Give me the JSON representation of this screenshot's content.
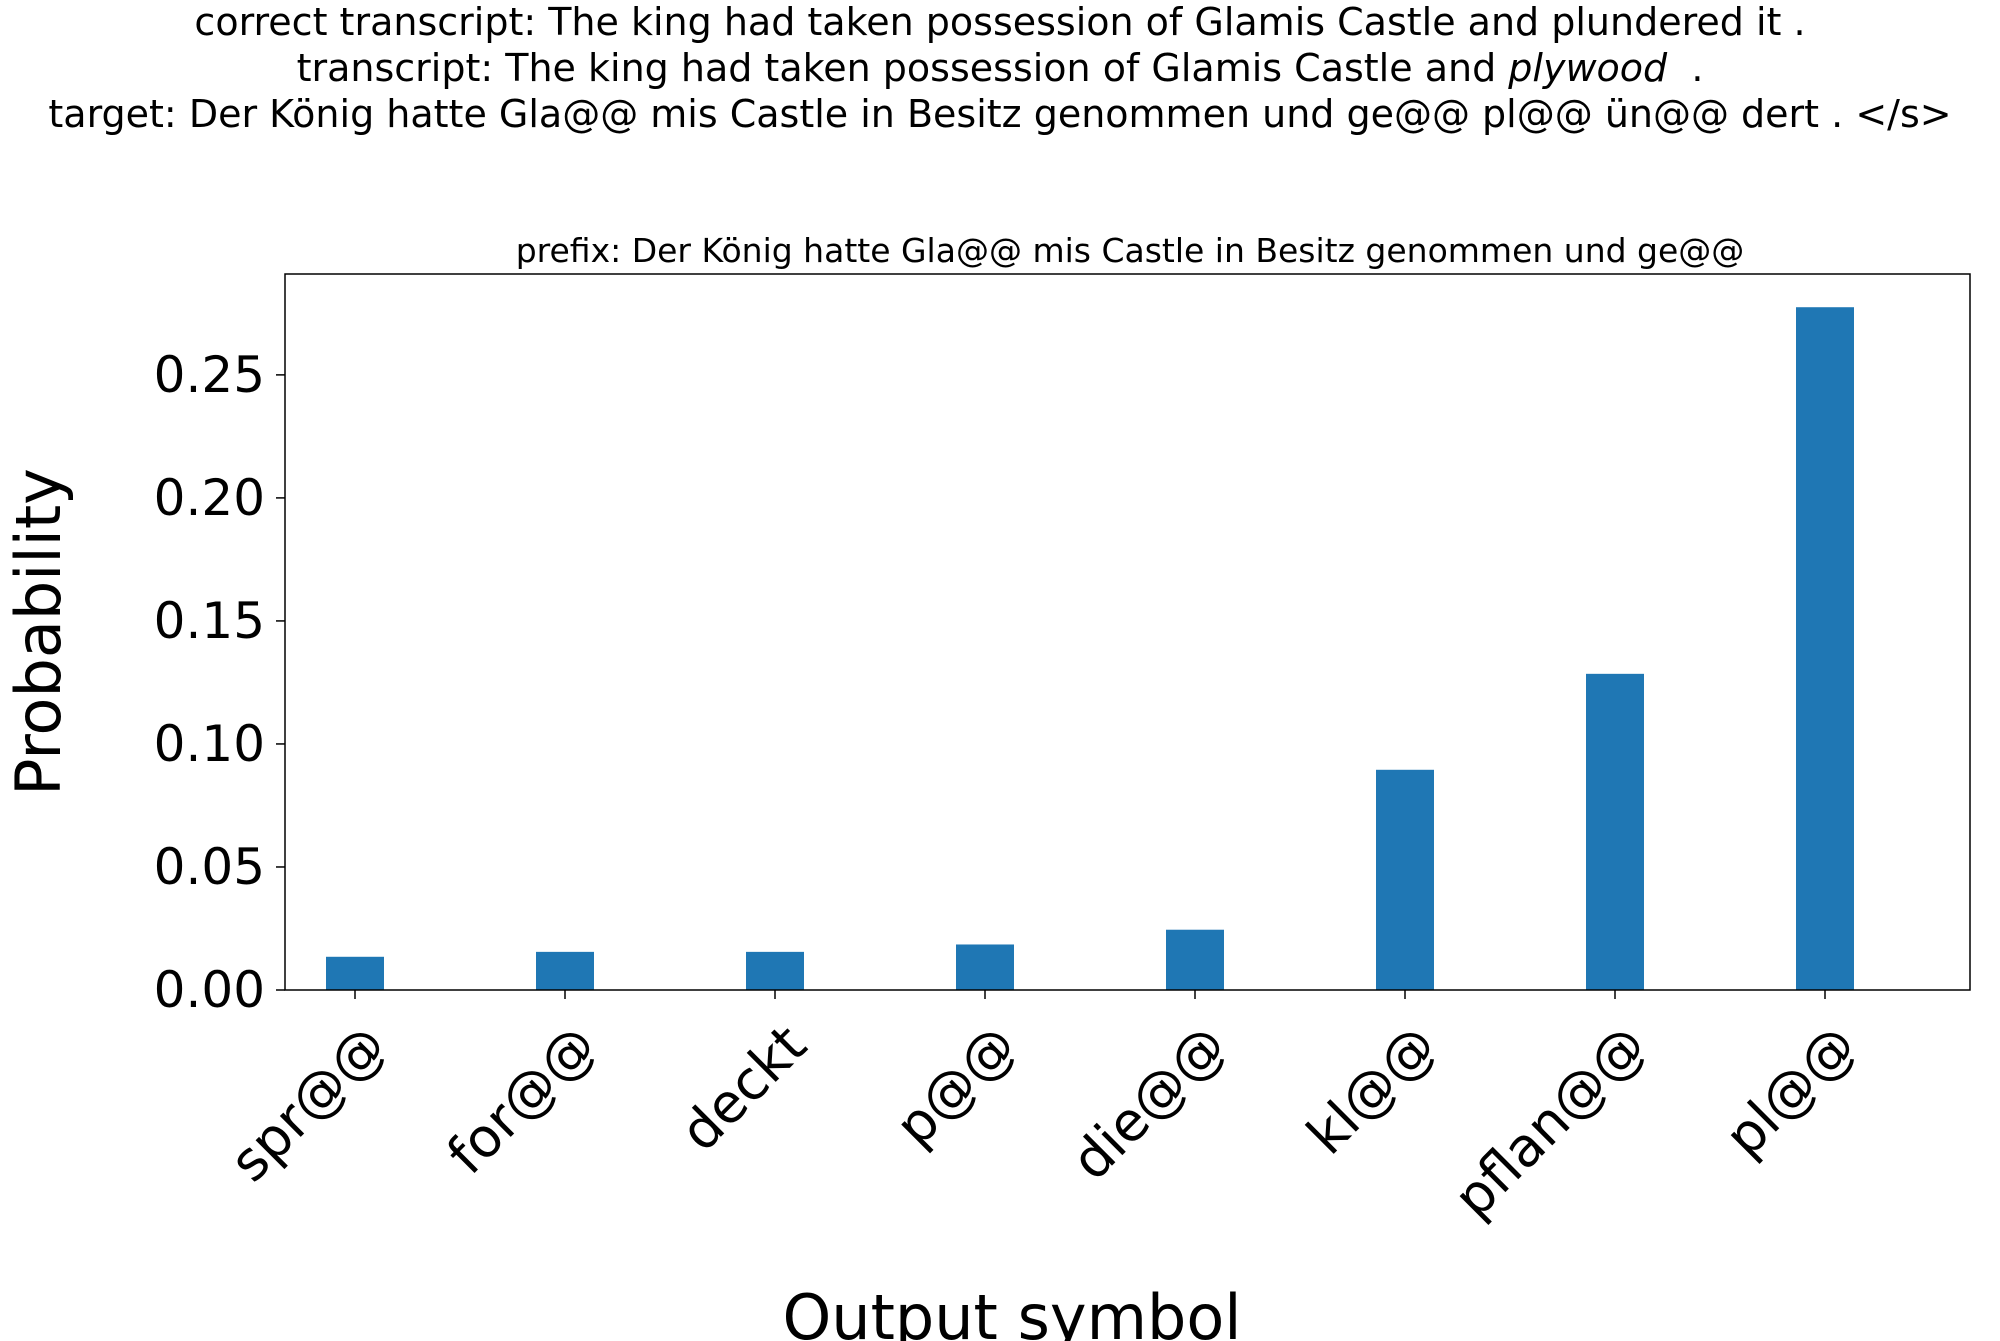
{
  "header": {
    "correct_transcript": "correct transcript: The king had taken possession of Glamis Castle and plundered it .",
    "transcript_prefix": "transcript: The king had taken possession of Glamis Castle and ",
    "transcript_emphasis": "plywood",
    "transcript_suffix": "  .",
    "target": "target: Der König hatte Gla@@ mis Castle in Besitz genommen und ge@@ pl@@ ün@@ dert . </s>"
  },
  "chart_data": {
    "type": "bar",
    "title": "prefix: Der König hatte Gla@@ mis Castle in Besitz genommen und ge@@",
    "xlabel": "Output symbol",
    "ylabel": "Probability",
    "categories": [
      "spr@@",
      "for@@",
      "deckt",
      "p@@",
      "die@@",
      "kl@@",
      "pflan@@",
      "pl@@"
    ],
    "values": [
      0.0135,
      0.0155,
      0.0155,
      0.0185,
      0.0245,
      0.0895,
      0.1285,
      0.2775
    ],
    "ylim": [
      0,
      0.291
    ],
    "yticks": [
      "0.00",
      "0.05",
      "0.10",
      "0.15",
      "0.20",
      "0.25"
    ],
    "ytick_values": [
      0,
      0.05,
      0.1,
      0.15,
      0.2,
      0.25
    ],
    "bar_color": "#1f77b4",
    "grid": false,
    "legend": false
  }
}
